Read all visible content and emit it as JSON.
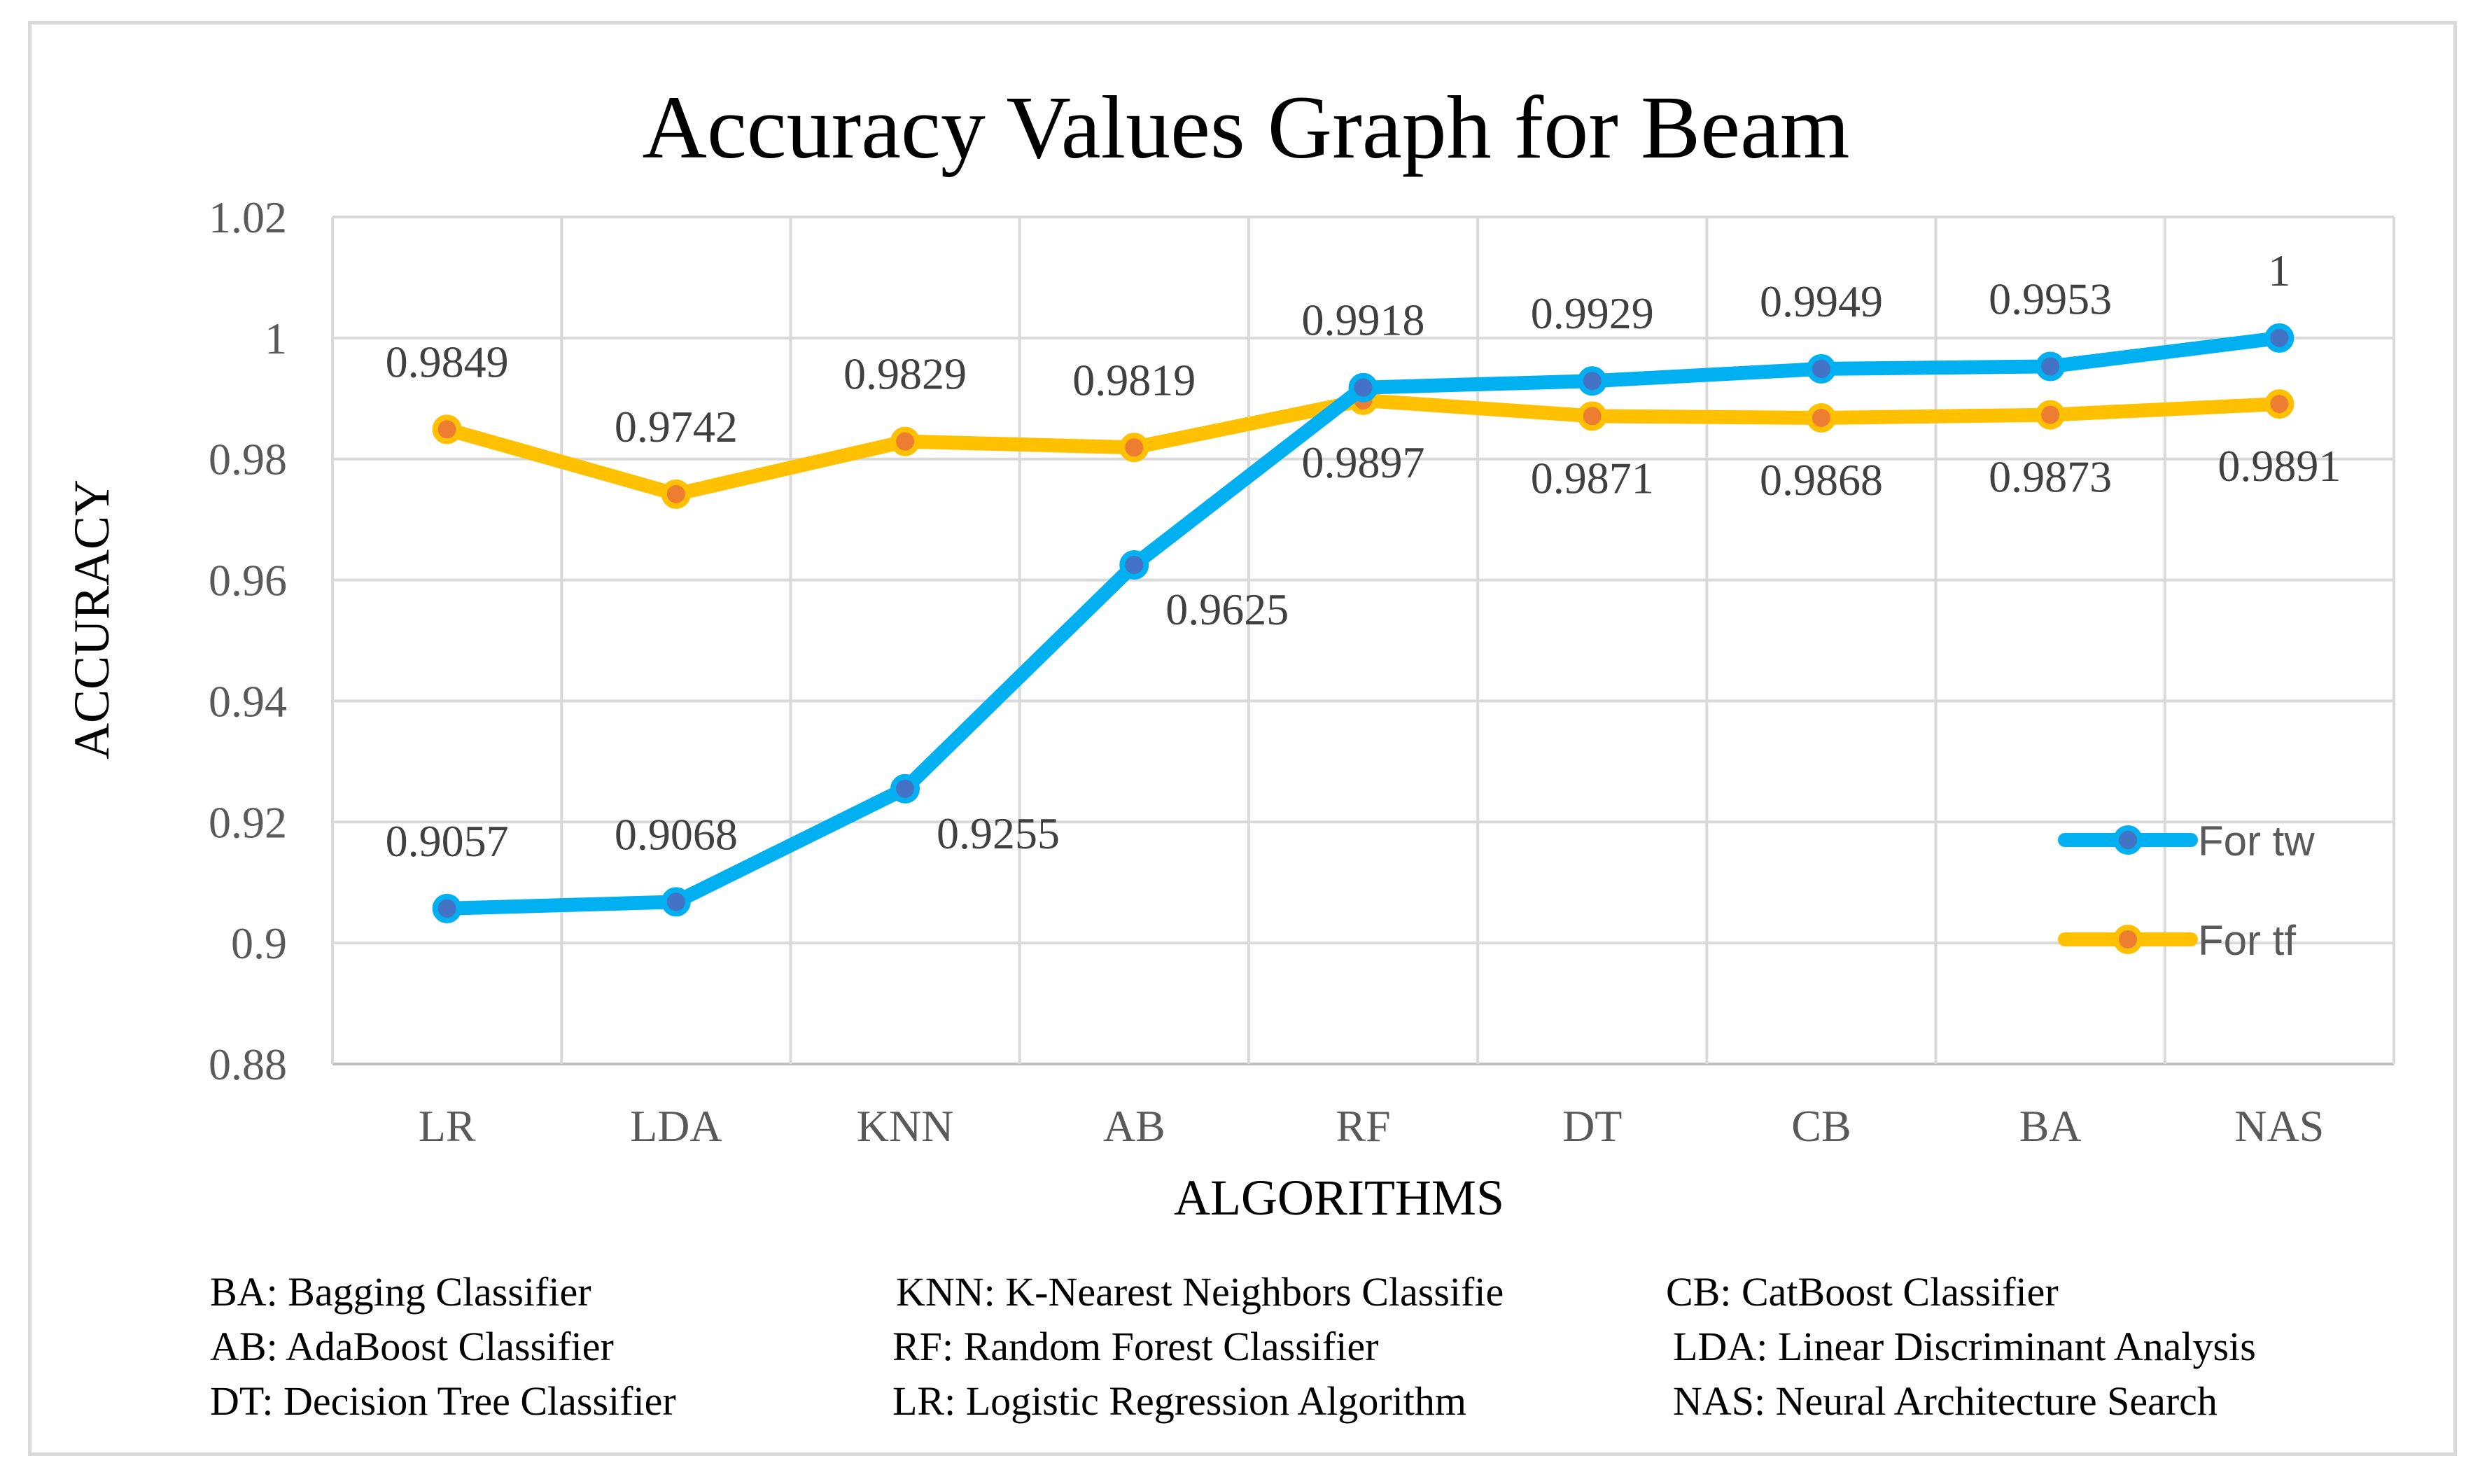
{
  "chart_data": {
    "type": "line",
    "title": "Accuracy Values Graph for Beam",
    "xlabel": "ALGORITHMS",
    "ylabel": "ACCURACY",
    "ylim": [
      0.88,
      1.02
    ],
    "yticks": [
      0.88,
      0.9,
      0.92,
      0.94,
      0.96,
      0.98,
      1,
      1.02
    ],
    "ytick_labels": [
      "0.88",
      "0.9",
      "0.92",
      "0.94",
      "0.96",
      "0.98",
      "1",
      "1.02"
    ],
    "grid": true,
    "legend_position": "right",
    "categories": [
      "LR",
      "LDA",
      "KNN",
      "AB",
      "RF",
      "DT",
      "CB",
      "BA",
      "NAS"
    ],
    "series": [
      {
        "name": "For tw",
        "color": "#00b0f0",
        "marker_color": "#4472c4",
        "values": [
          0.9057,
          0.9068,
          0.9255,
          0.9625,
          0.9918,
          0.9929,
          0.9949,
          0.9953,
          1
        ],
        "labels": [
          "0.9057",
          "0.9068",
          "0.9255",
          "0.9625",
          "0.9918",
          "0.9929",
          "0.9949",
          "0.9953",
          "1"
        ],
        "label_side": [
          "above",
          "above",
          "below-right",
          "below-right",
          "above",
          "above",
          "above",
          "above",
          "above"
        ]
      },
      {
        "name": "For tf",
        "color": "#ffc000",
        "marker_color": "#ed7d31",
        "values": [
          0.9849,
          0.9742,
          0.9829,
          0.9819,
          0.9897,
          0.9871,
          0.9868,
          0.9873,
          0.9891
        ],
        "labels": [
          "0.9849",
          "0.9742",
          "0.9829",
          "0.9819",
          "0.9897",
          "0.9871",
          "0.9868",
          "0.9873",
          "0.9891"
        ],
        "label_side": [
          "above",
          "above",
          "above",
          "above",
          "below",
          "below",
          "below",
          "below",
          "below"
        ]
      }
    ]
  },
  "glossary": {
    "rows": [
      [
        "BA: Bagging Classifier",
        "KNN: K-Nearest Neighbors Classifie",
        "CB: CatBoost Classifier"
      ],
      [
        "AB: AdaBoost Classifier",
        "RF: Random Forest Classifier",
        "LDA: Linear Discriminant Analysis"
      ],
      [
        "DT: Decision Tree Classifier",
        "LR: Logistic Regression Algorithm",
        "NAS: Neural Architecture Search"
      ]
    ]
  }
}
